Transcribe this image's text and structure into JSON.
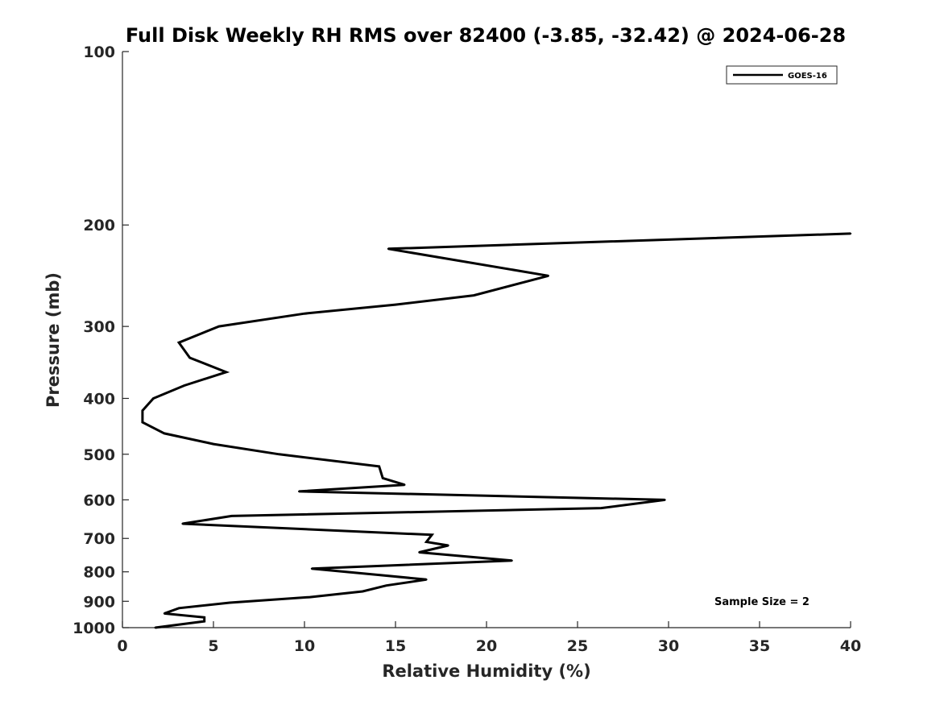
{
  "chart_data": {
    "type": "line",
    "title": "Full Disk Weekly RH RMS over 82400 (-3.85, -32.42) @ 2024-06-28",
    "xlabel": "Relative Humidity (%)",
    "ylabel": "Pressure (mb)",
    "xlim": [
      0,
      40
    ],
    "ylim": [
      100,
      1000
    ],
    "y_scale": "log",
    "y_reversed": true,
    "grid": false,
    "legend_position": "top-right",
    "x_ticks": [
      0,
      5,
      10,
      15,
      20,
      25,
      30,
      35,
      40
    ],
    "x_tick_labels": [
      "0",
      "5",
      "10",
      "15",
      "20",
      "25",
      "30",
      "35",
      "40"
    ],
    "y_ticks": [
      100,
      200,
      300,
      400,
      500,
      600,
      700,
      800,
      900,
      1000
    ],
    "y_tick_labels": [
      "100",
      "200",
      "300",
      "400",
      "500",
      "600",
      "700",
      "800",
      "900",
      "1000"
    ],
    "series": [
      {
        "name": "GOES-16",
        "color": "#000000",
        "points": [
          [
            40.0,
            207
          ],
          [
            14.6,
            220
          ],
          [
            23.4,
            245
          ],
          [
            19.3,
            265
          ],
          [
            15.0,
            275
          ],
          [
            10.0,
            285
          ],
          [
            5.3,
            300
          ],
          [
            3.1,
            320
          ],
          [
            3.7,
            340
          ],
          [
            5.7,
            360
          ],
          [
            3.4,
            380
          ],
          [
            1.7,
            400
          ],
          [
            1.1,
            420
          ],
          [
            1.1,
            440
          ],
          [
            2.3,
            460
          ],
          [
            5.0,
            480
          ],
          [
            8.6,
            500
          ],
          [
            14.1,
            525
          ],
          [
            14.3,
            550
          ],
          [
            15.5,
            565
          ],
          [
            9.7,
            580
          ],
          [
            29.8,
            600
          ],
          [
            26.3,
            620
          ],
          [
            6.0,
            640
          ],
          [
            3.3,
            660
          ],
          [
            17.0,
            690
          ],
          [
            16.7,
            710
          ],
          [
            17.9,
            720
          ],
          [
            16.3,
            740
          ],
          [
            21.4,
            765
          ],
          [
            10.4,
            790
          ],
          [
            14.1,
            810
          ],
          [
            16.7,
            825
          ],
          [
            14.5,
            845
          ],
          [
            13.2,
            865
          ],
          [
            10.3,
            885
          ],
          [
            5.9,
            905
          ],
          [
            3.1,
            925
          ],
          [
            2.3,
            945
          ],
          [
            4.5,
            960
          ],
          [
            4.5,
            975
          ],
          [
            1.8,
            1000
          ]
        ]
      }
    ],
    "annotations": [
      "Sample Size = 2"
    ]
  }
}
